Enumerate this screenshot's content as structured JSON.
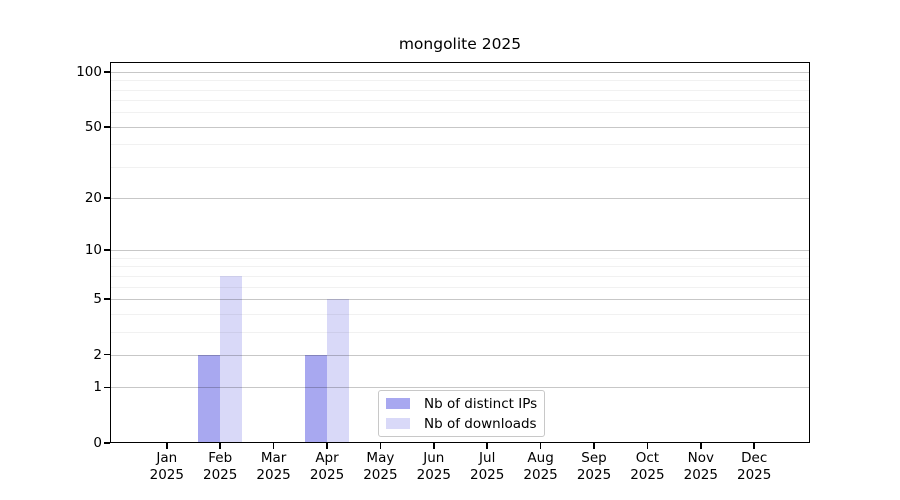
{
  "title": "mongolite 2025",
  "legend": {
    "items": [
      {
        "label": "Nb of distinct IPs",
        "color": "#a8a8f0"
      },
      {
        "label": "Nb of downloads",
        "color": "#d9d9f8"
      }
    ]
  },
  "x_axis": {
    "months": [
      "Jan",
      "Feb",
      "Mar",
      "Apr",
      "May",
      "Jun",
      "Jul",
      "Aug",
      "Sep",
      "Oct",
      "Nov",
      "Dec"
    ],
    "year": "2025"
  },
  "y_axis": {
    "tick_values": [
      100,
      50,
      20,
      10,
      5,
      2,
      1,
      0
    ],
    "minor_gridline_values": [
      3,
      4,
      6,
      7,
      8,
      9,
      30,
      40,
      60,
      70,
      80,
      90
    ]
  },
  "chart_data": {
    "type": "bar",
    "title": "mongolite 2025",
    "categories": [
      "Jan 2025",
      "Feb 2025",
      "Mar 2025",
      "Apr 2025",
      "May 2025",
      "Jun 2025",
      "Jul 2025",
      "Aug 2025",
      "Sep 2025",
      "Oct 2025",
      "Nov 2025",
      "Dec 2025"
    ],
    "series": [
      {
        "name": "Nb of distinct IPs",
        "color": "#a8a8f0",
        "values": [
          0,
          2,
          0,
          2,
          0,
          0,
          0,
          0,
          0,
          0,
          0,
          0
        ]
      },
      {
        "name": "Nb of downloads",
        "color": "#d9d9f8",
        "values": [
          0,
          7,
          0,
          5,
          0,
          0,
          0,
          0,
          0,
          0,
          0,
          0
        ]
      }
    ],
    "xlabel": "",
    "ylabel": "",
    "yscale": "log1p",
    "ylim": [
      0,
      112
    ],
    "y_ticks": [
      0,
      1,
      2,
      5,
      10,
      20,
      50,
      100
    ],
    "grid": true,
    "legend_position": "inside-bottom-center",
    "background": "#ffffff",
    "major_grid_color": "#c7c7c7",
    "minor_grid_color": "#f1f1f1"
  }
}
